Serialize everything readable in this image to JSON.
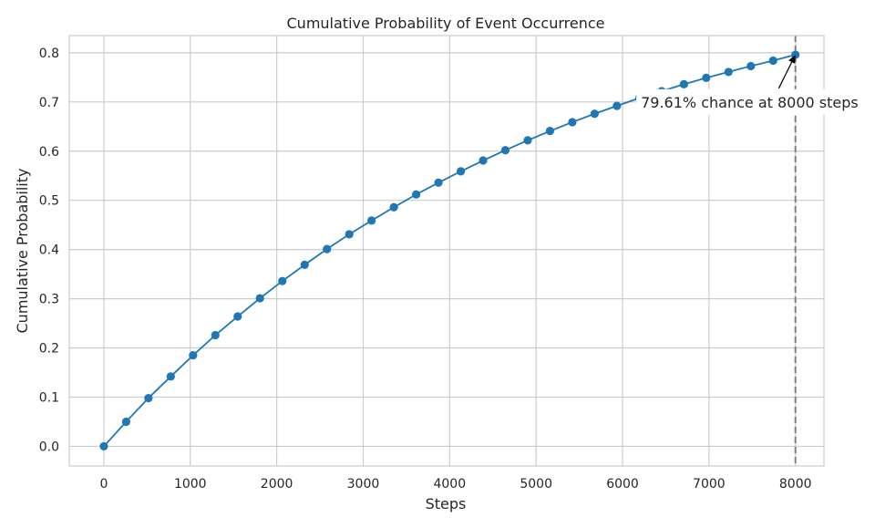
{
  "chart_data": {
    "type": "line",
    "title": "Cumulative Probability of Event Occurrence",
    "xlabel": "Steps",
    "ylabel": "Cumulative Probability",
    "xlim": [
      -400,
      8330
    ],
    "ylim": [
      -0.04,
      0.835
    ],
    "xticks": [
      0,
      1000,
      2000,
      3000,
      4000,
      5000,
      6000,
      7000,
      8000
    ],
    "yticks": [
      0.0,
      0.1,
      0.2,
      0.3,
      0.4,
      0.5,
      0.6,
      0.7,
      0.8
    ],
    "xtick_labels": [
      "0",
      "1000",
      "2000",
      "3000",
      "4000",
      "5000",
      "6000",
      "7000",
      "8000"
    ],
    "ytick_labels": [
      "0.0",
      "0.1",
      "0.2",
      "0.3",
      "0.4",
      "0.5",
      "0.6",
      "0.7",
      "0.8"
    ],
    "grid": true,
    "series": [
      {
        "x": [
          0,
          258,
          516,
          774,
          1032,
          1290,
          1548,
          1806,
          2065,
          2323,
          2581,
          2839,
          3097,
          3355,
          3613,
          3871,
          4129,
          4387,
          4645,
          4903,
          5161,
          5419,
          5677,
          5935,
          6194,
          6452,
          6710,
          6968,
          7226,
          7484,
          7742,
          8000
        ],
        "y": [
          0.0,
          0.05,
          0.098,
          0.142,
          0.185,
          0.226,
          0.264,
          0.301,
          0.336,
          0.369,
          0.401,
          0.431,
          0.459,
          0.486,
          0.512,
          0.536,
          0.559,
          0.581,
          0.602,
          0.622,
          0.641,
          0.659,
          0.676,
          0.692,
          0.708,
          0.722,
          0.736,
          0.749,
          0.761,
          0.773,
          0.784,
          0.796
        ],
        "color": "#1f77b4"
      }
    ],
    "vline": {
      "x": 8000,
      "color": "#7f7f7f",
      "style": "dashed"
    },
    "annotation": {
      "text": "79.61% chance at 8000 steps",
      "point": {
        "x": 8000,
        "y": 0.7961
      },
      "text_anchor": {
        "x": 7470,
        "y": 0.7
      }
    }
  }
}
